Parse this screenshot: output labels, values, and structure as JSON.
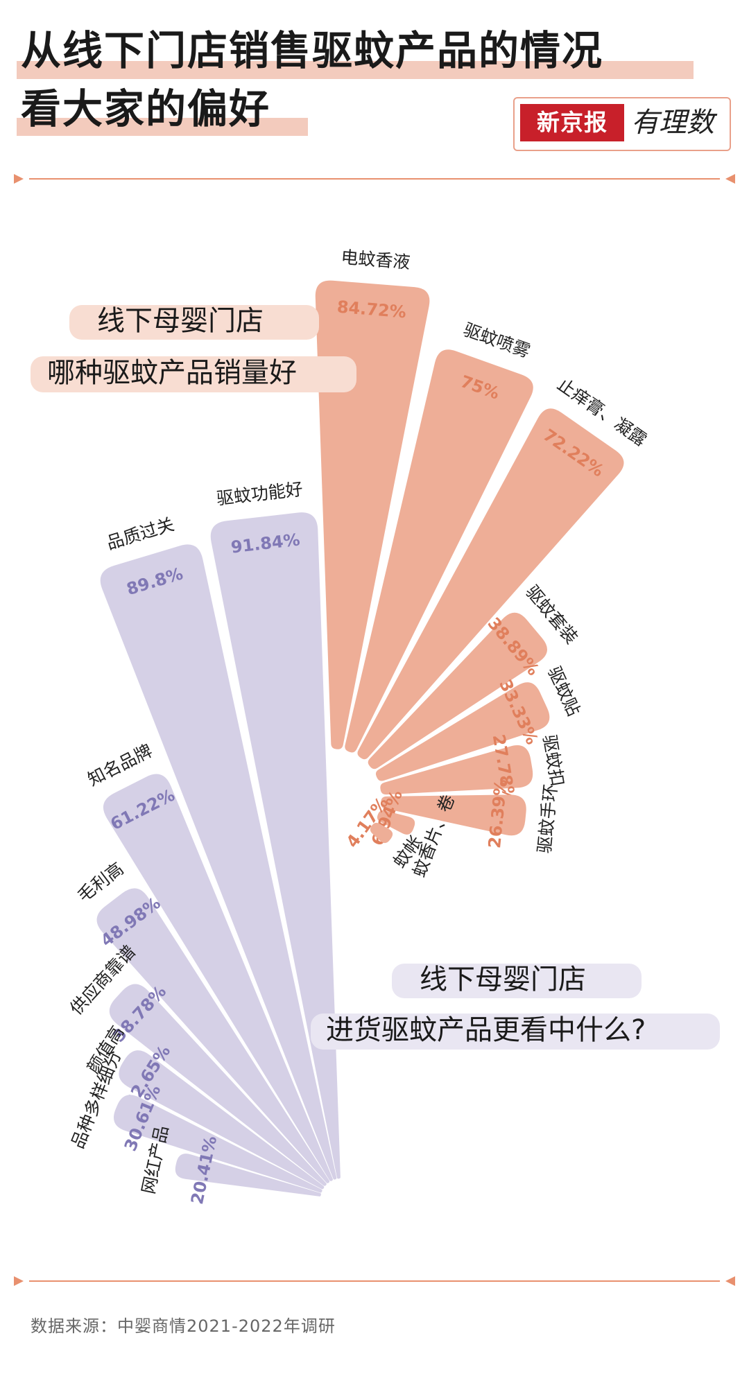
{
  "title": {
    "line1": "从线下门店销售驱蚊产品的情况",
    "line2": "看大家的偏好"
  },
  "logo": {
    "brand": "新京报",
    "sub": "有理数"
  },
  "source": "数据来源：中婴商情2021-2022年调研",
  "colors": {
    "accent_orange": "#e8906e",
    "title_highlight": "#f3cbbd",
    "sales_fill": "#eeae97",
    "sales_text": "#e07f5c",
    "purchase_fill": "#d5d0e6",
    "purchase_text": "#8078b5"
  },
  "chart_data": [
    {
      "type": "bar",
      "layout": "radial",
      "title_lines": [
        "线下母婴门店",
        "哪种驱蚊产品销量好"
      ],
      "categories": [
        "电蚊香液",
        "驱蚊喷雾",
        "止痒膏、凝露",
        "驱蚊套装",
        "驱蚊贴",
        "驱蚊扣",
        "驱蚊手环",
        "蚊香片、卷",
        "蚊帐"
      ],
      "values": [
        84.72,
        75,
        72.22,
        38.89,
        33.33,
        27.78,
        26.39,
        6.94,
        4.17
      ],
      "value_labels": [
        "84.72%",
        "75%",
        "72.22%",
        "38.89%",
        "33.33%",
        "27.78%",
        "26.39%",
        "6.94%",
        "4.17%"
      ],
      "unit": "%"
    },
    {
      "type": "bar",
      "layout": "radial",
      "title_lines": [
        "线下母婴门店",
        "进货驱蚊产品更看中什么?"
      ],
      "categories": [
        "驱蚊功能好",
        "品质过关",
        "知名品牌",
        "毛利高",
        "供应商靠谱",
        "颜值高",
        "品种多样细分",
        "网红产品"
      ],
      "values": [
        91.84,
        89.8,
        61.22,
        48.98,
        38.78,
        32.65,
        30.61,
        20.41
      ],
      "value_labels": [
        "91.84%",
        "89.8%",
        "61.22%",
        "48.98%",
        "38.78%",
        "32.65%",
        "30.61%",
        "20.41%"
      ],
      "unit": "%"
    }
  ]
}
